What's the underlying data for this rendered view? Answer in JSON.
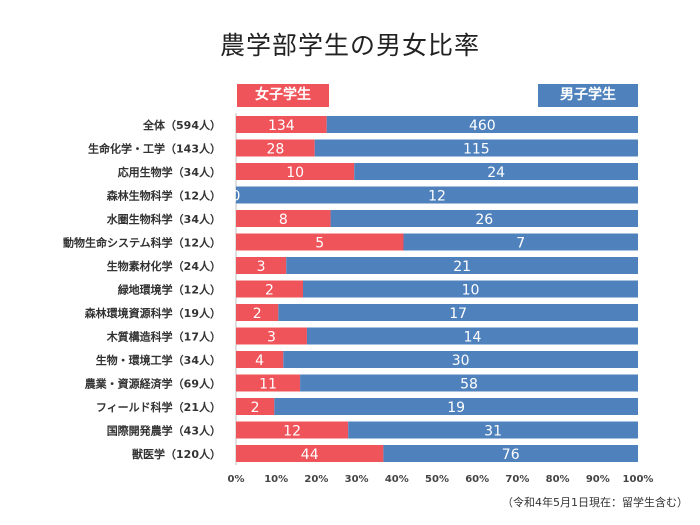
{
  "title": "農学部学生の男女比率",
  "footnote": "（令和4年5月1日現在：留学生含む）",
  "colors": {
    "female": "#f0545b",
    "male": "#4f81bd"
  },
  "chart_data": {
    "type": "bar",
    "orientation": "horizontal",
    "stacked": "percent",
    "categories": [
      "全体（594人）",
      "生命化学・工学（143人）",
      "応用生物学（34人）",
      "森林生物科学（12人）",
      "水圏生物科学（34人）",
      "動物生命システム科学（12人）",
      "生物素材化学（24人）",
      "緑地環境学（12人）",
      "森林環境資源科学（19人）",
      "木質構造科学（17人）",
      "生物・環境工学（34人）",
      "農業・資源経済学（69人）",
      "フィールド科学（21人）",
      "国際開発農学（43人）",
      "獣医学（120人）"
    ],
    "series": [
      {
        "name": "女子学生",
        "values": [
          134,
          28,
          10,
          0,
          8,
          5,
          3,
          2,
          2,
          3,
          4,
          11,
          2,
          12,
          44
        ]
      },
      {
        "name": "男子学生",
        "values": [
          460,
          115,
          24,
          12,
          26,
          7,
          21,
          10,
          17,
          14,
          30,
          58,
          19,
          31,
          76
        ]
      }
    ],
    "xticks": [
      "0%",
      "10%",
      "20%",
      "30%",
      "40%",
      "50%",
      "60%",
      "70%",
      "80%",
      "90%",
      "100%"
    ],
    "xlim": [
      0,
      100
    ],
    "legend_position": "top"
  }
}
